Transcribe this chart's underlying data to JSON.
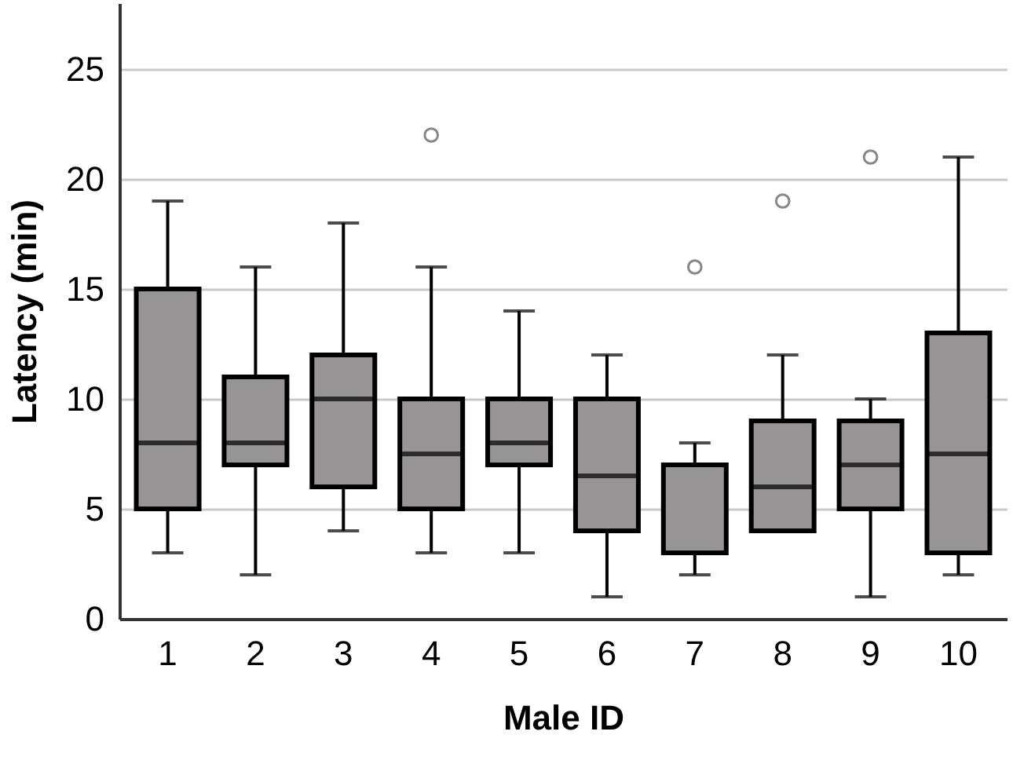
{
  "chart_data": {
    "type": "box",
    "xlabel": "Male ID",
    "ylabel": "Latency (min)",
    "categories": [
      "1",
      "2",
      "3",
      "4",
      "5",
      "6",
      "7",
      "8",
      "9",
      "10"
    ],
    "color": "#999494",
    "boxes": [
      {
        "low": 3,
        "q1": 5,
        "median": 8,
        "q3": 15,
        "high": 19
      },
      {
        "low": 2,
        "q1": 7,
        "median": 8,
        "q3": 11,
        "high": 16
      },
      {
        "low": 4,
        "q1": 6,
        "median": 10,
        "q3": 12,
        "high": 18
      },
      {
        "low": 3,
        "q1": 5,
        "median": 7.5,
        "q3": 10,
        "high": 16,
        "outliers": [
          22
        ]
      },
      {
        "low": 3,
        "q1": 7,
        "median": 8,
        "q3": 10,
        "high": 14
      },
      {
        "low": 1,
        "q1": 4,
        "median": 6.5,
        "q3": 10,
        "high": 12
      },
      {
        "low": 2,
        "q1": 3,
        "median": 3,
        "q3": 7,
        "high": 8,
        "outliers": [
          16
        ]
      },
      {
        "low": 4,
        "q1": 4,
        "median": 6,
        "q3": 9,
        "high": 12,
        "outliers": [
          19
        ]
      },
      {
        "low": 1,
        "q1": 5,
        "median": 7,
        "q3": 9,
        "high": 10,
        "outliers": [
          21
        ]
      },
      {
        "low": 2,
        "q1": 3,
        "median": 7.5,
        "q3": 13,
        "high": 21
      }
    ],
    "ylim": [
      0,
      28
    ],
    "yticks": [
      0,
      5,
      10,
      15,
      20,
      25
    ],
    "grid": "y"
  }
}
